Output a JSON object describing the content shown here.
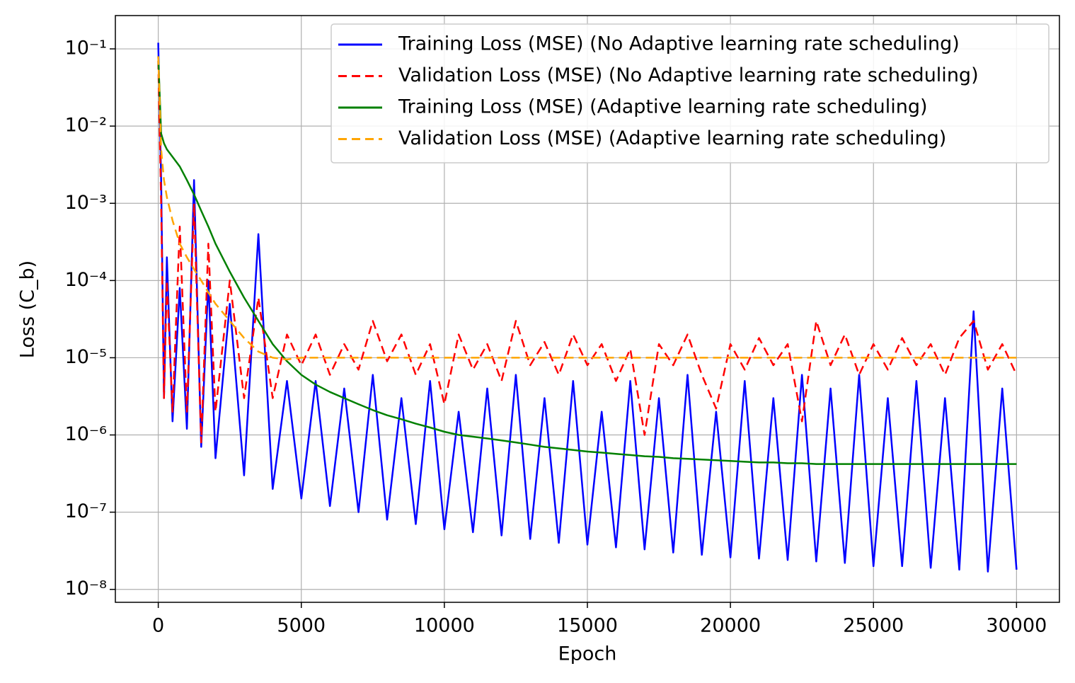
{
  "chart_data": {
    "type": "line",
    "xlabel": "Epoch",
    "ylabel": "Loss (C_b)",
    "log_y": true,
    "grid": true,
    "legend_loc": "upper right",
    "xlim": [
      -1500,
      31500
    ],
    "ylim": [
      6.8e-09,
      0.27
    ],
    "xticks": [
      0,
      5000,
      10000,
      15000,
      20000,
      25000,
      30000
    ],
    "yticks": [
      {
        "value": 1e-08,
        "label": "10⁻⁸"
      },
      {
        "value": 1e-07,
        "label": "10⁻⁷"
      },
      {
        "value": 1e-06,
        "label": "10⁻⁶"
      },
      {
        "value": 1e-05,
        "label": "10⁻⁵"
      },
      {
        "value": 0.0001,
        "label": "10⁻⁴"
      },
      {
        "value": 0.001,
        "label": "10⁻³"
      },
      {
        "value": 0.01,
        "label": "10⁻²"
      },
      {
        "value": 0.1,
        "label": "10⁻¹"
      }
    ],
    "x": [
      0,
      100,
      200,
      300,
      500,
      750,
      1000,
      1250,
      1500,
      1750,
      2000,
      2500,
      3000,
      3500,
      4000,
      4500,
      5000,
      5500,
      6000,
      6500,
      7000,
      7500,
      8000,
      8500,
      9000,
      9500,
      10000,
      10500,
      11000,
      11500,
      12000,
      12500,
      13000,
      13500,
      14000,
      14500,
      15000,
      15500,
      16000,
      16500,
      17000,
      17500,
      18000,
      18500,
      19000,
      19500,
      20000,
      20500,
      21000,
      21500,
      22000,
      22500,
      23000,
      23500,
      24000,
      24500,
      25000,
      25500,
      26000,
      26500,
      27000,
      27500,
      28000,
      28500,
      29000,
      29500,
      30000
    ],
    "series": [
      {
        "name": "Training Loss (MSE) (No Adaptive learning rate scheduling)",
        "color": "#0000ff",
        "linestyle": "solid",
        "values": [
          0.12,
          0.002,
          3e-06,
          0.0002,
          1.5e-06,
          8e-05,
          1.2e-06,
          0.002,
          7e-07,
          0.0001,
          5e-07,
          5e-05,
          3e-07,
          0.0004,
          2e-07,
          5e-06,
          1.5e-07,
          5e-06,
          1.2e-07,
          4e-06,
          1e-07,
          6e-06,
          8e-08,
          3e-06,
          7e-08,
          5e-06,
          6e-08,
          2e-06,
          5.5e-08,
          4e-06,
          5e-08,
          6e-06,
          4.5e-08,
          3e-06,
          4e-08,
          5e-06,
          3.8e-08,
          2e-06,
          3.5e-08,
          5e-06,
          3.3e-08,
          3e-06,
          3e-08,
          6e-06,
          2.8e-08,
          2e-06,
          2.6e-08,
          5e-06,
          2.5e-08,
          3e-06,
          2.4e-08,
          6e-06,
          2.3e-08,
          4e-06,
          2.2e-08,
          6e-06,
          2e-08,
          3e-06,
          2e-08,
          5e-06,
          1.9e-08,
          3e-06,
          1.8e-08,
          4e-05,
          1.7e-08,
          4e-06,
          1.8e-08
        ]
      },
      {
        "name": "Validation Loss (MSE) (No Adaptive learning rate scheduling)",
        "color": "#ff0000",
        "linestyle": "dashed",
        "values": [
          0.07,
          0.001,
          3e-06,
          0.0001,
          2e-06,
          0.0005,
          2e-06,
          0.001,
          8e-07,
          0.0003,
          2e-06,
          0.0001,
          3e-06,
          6e-05,
          3e-06,
          2e-05,
          8e-06,
          2e-05,
          6e-06,
          1.5e-05,
          7e-06,
          3e-05,
          9e-06,
          2e-05,
          6e-06,
          1.5e-05,
          2.5e-06,
          2e-05,
          7e-06,
          1.5e-05,
          5e-06,
          3e-05,
          8e-06,
          1.6e-05,
          6e-06,
          2e-05,
          8e-06,
          1.5e-05,
          5e-06,
          1.3e-05,
          1e-06,
          1.5e-05,
          8e-06,
          2e-05,
          6e-06,
          2.2e-06,
          1.5e-05,
          7e-06,
          1.8e-05,
          8e-06,
          1.5e-05,
          1.5e-06,
          3e-05,
          8e-06,
          2e-05,
          6e-06,
          1.5e-05,
          7e-06,
          1.8e-05,
          8e-06,
          1.5e-05,
          6e-06,
          1.8e-05,
          3e-05,
          7e-06,
          1.5e-05,
          6e-06
        ]
      },
      {
        "name": "Training Loss (MSE) (Adaptive learning rate scheduling)",
        "color": "#008000",
        "linestyle": "solid",
        "values": [
          0.08,
          0.008,
          0.006,
          0.005,
          0.004,
          0.003,
          0.002,
          0.0013,
          0.0008,
          0.0005,
          0.0003,
          0.00013,
          6e-05,
          3e-05,
          1.5e-05,
          9e-06,
          6e-06,
          4.5e-06,
          3.6e-06,
          3e-06,
          2.5e-06,
          2.1e-06,
          1.8e-06,
          1.6e-06,
          1.4e-06,
          1.25e-06,
          1.1e-06,
          1e-06,
          9.5e-07,
          9e-07,
          8.5e-07,
          8e-07,
          7.5e-07,
          7e-07,
          6.7e-07,
          6.4e-07,
          6.1e-07,
          5.9e-07,
          5.7e-07,
          5.5e-07,
          5.3e-07,
          5.2e-07,
          5e-07,
          4.9e-07,
          4.8e-07,
          4.7e-07,
          4.6e-07,
          4.5e-07,
          4.4e-07,
          4.4e-07,
          4.3e-07,
          4.3e-07,
          4.2e-07,
          4.2e-07,
          4.2e-07,
          4.2e-07,
          4.2e-07,
          4.2e-07,
          4.2e-07,
          4.2e-07,
          4.2e-07,
          4.2e-07,
          4.2e-07,
          4.2e-07,
          4.2e-07,
          4.2e-07,
          4.2e-07
        ]
      },
      {
        "name": "Validation Loss (MSE) (Adaptive learning rate scheduling)",
        "color": "#ffa500",
        "linestyle": "dashed",
        "values": [
          0.08,
          0.005,
          0.002,
          0.0012,
          0.0006,
          0.0003,
          0.0002,
          0.00014,
          0.0001,
          7e-05,
          5e-05,
          3e-05,
          1.8e-05,
          1.2e-05,
          1e-05,
          9.5e-06,
          1e-05,
          1e-05,
          1e-05,
          1e-05,
          1e-05,
          1e-05,
          1e-05,
          1e-05,
          1e-05,
          1e-05,
          1e-05,
          1e-05,
          1e-05,
          1e-05,
          1e-05,
          1e-05,
          1e-05,
          1e-05,
          1e-05,
          1e-05,
          1e-05,
          1e-05,
          1e-05,
          1e-05,
          1e-05,
          1e-05,
          1e-05,
          1e-05,
          1e-05,
          1e-05,
          1e-05,
          1e-05,
          1e-05,
          1e-05,
          1e-05,
          1e-05,
          1e-05,
          1e-05,
          1e-05,
          1e-05,
          1e-05,
          1e-05,
          1e-05,
          1e-05,
          1e-05,
          1e-05,
          1e-05,
          1e-05,
          1e-05,
          1e-05,
          1e-05
        ]
      }
    ]
  }
}
